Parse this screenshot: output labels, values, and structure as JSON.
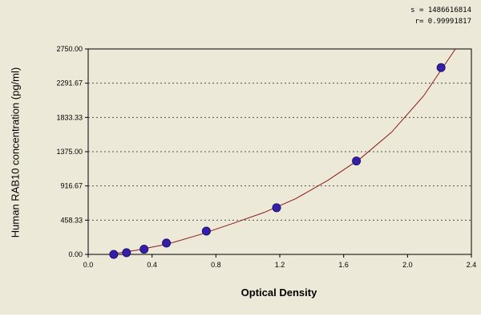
{
  "stats": {
    "s_text": "s = 1486616814",
    "r_text": "r= 0.99991817"
  },
  "colors": {
    "panel": "#ece9d8",
    "curve": "#8b1a1a",
    "point": "#3420a8",
    "grid": "#505050"
  },
  "chart_data": {
    "type": "scatter",
    "xlabel": "Optical Density",
    "ylabel": "Human RAB10 concentration (pg/ml)",
    "xlim": [
      0.0,
      2.4
    ],
    "ylim": [
      0.0,
      2750.0
    ],
    "xticks": [
      "0.0",
      "0.4",
      "0.8",
      "1.2",
      "1.6",
      "2.0",
      "2.4"
    ],
    "yticks": [
      "0.00",
      "458.33",
      "916.67",
      "1375.00",
      "1833.33",
      "2291.67",
      "2750.00"
    ],
    "grid": "horizontal dashed",
    "series": [
      {
        "x": [
          0.16,
          0.24,
          0.35,
          0.49,
          0.74,
          1.18,
          1.68,
          2.21
        ],
        "y": [
          0,
          23,
          70,
          152,
          312,
          625,
          1250,
          2500
        ]
      }
    ],
    "fit_curve": [
      [
        0.14,
        3
      ],
      [
        0.3,
        55
      ],
      [
        0.5,
        140
      ],
      [
        0.7,
        265
      ],
      [
        0.9,
        410
      ],
      [
        1.1,
        560
      ],
      [
        1.3,
        745
      ],
      [
        1.5,
        990
      ],
      [
        1.7,
        1275
      ],
      [
        1.9,
        1635
      ],
      [
        2.1,
        2120
      ],
      [
        2.3,
        2750
      ]
    ]
  }
}
